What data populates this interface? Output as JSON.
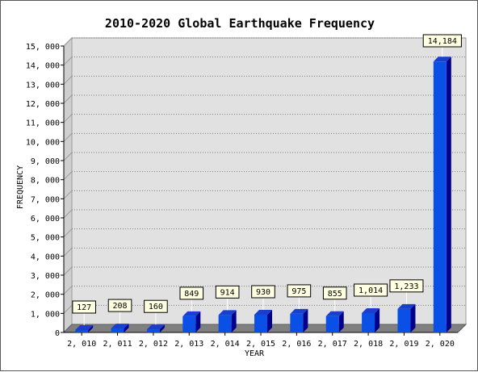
{
  "chart_data": {
    "type": "bar",
    "title": "2010-2020 Global Earthquake Frequency",
    "xlabel": "YEAR",
    "ylabel": "FREQUENCY",
    "categories": [
      "2, 010",
      "2, 011",
      "2, 012",
      "2, 013",
      "2, 014",
      "2, 015",
      "2, 016",
      "2, 017",
      "2, 018",
      "2, 019",
      "2, 020"
    ],
    "values": [
      127,
      208,
      160,
      849,
      914,
      930,
      975,
      855,
      1014,
      1233,
      14184
    ],
    "value_labels": [
      "127",
      "208",
      "160",
      "849",
      "914",
      "930",
      "975",
      "855",
      "1,014",
      "1,233",
      "14,184"
    ],
    "ylim": [
      0,
      15000
    ],
    "yticks": [
      0,
      1000,
      2000,
      3000,
      4000,
      5000,
      6000,
      7000,
      8000,
      9000,
      10000,
      11000,
      12000,
      13000,
      14000,
      15000
    ],
    "ytick_labels": [
      "0",
      "1, 000",
      "2, 000",
      "3, 000",
      "4, 000",
      "5, 000",
      "6, 000",
      "7, 000",
      "8, 000",
      "9, 000",
      "10, 000",
      "11, 000",
      "12, 000",
      "13, 000",
      "14, 000",
      "15, 000"
    ],
    "grid": true,
    "colors": {
      "bar_front": "#0a4fe6",
      "bar_side": "#00008b",
      "bar_top": "#1a3fcc",
      "plot_bg": "#e1e1e1",
      "floor": "#808080",
      "label_bg": "#ffffe1"
    }
  }
}
